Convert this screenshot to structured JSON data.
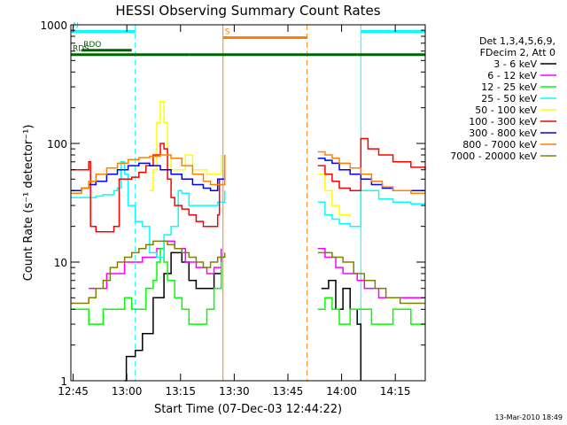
{
  "chart_data": {
    "type": "line",
    "title": "HESSI Observing Summary Count Rates",
    "xlabel": "Start Time (07-Dec-03 12:44:22)",
    "ylabel": "Count Rate (s⁻¹ detector⁻¹)",
    "ylog": true,
    "ylim": [
      1,
      1000
    ],
    "xlim_minutes_after_start": [
      0,
      99
    ],
    "x_ticks": [
      "12:45",
      "13:00",
      "13:15",
      "13:30",
      "13:45",
      "14:00",
      "14:15"
    ],
    "y_ticks": [
      "1",
      "10",
      "100",
      "1000"
    ],
    "footer_date": "13-Mar-2010 18:49",
    "legend_header": [
      "Det 1,3,4,5,6,9,",
      "FDecim 2, Att 0"
    ],
    "flags": [
      {
        "label": "N",
        "color": "#00ffff",
        "segments": [
          [
            0,
            18
          ],
          [
            81,
            99
          ]
        ],
        "level": 880
      },
      {
        "label": "S",
        "color": "#ff8000",
        "segments": [
          [
            42.5,
            66
          ]
        ],
        "level": 780
      },
      {
        "label": "RDO",
        "color": "#006400",
        "segments": [
          [
            3,
            17
          ]
        ],
        "level": 610
      },
      {
        "label": "RDS",
        "color": "#006400",
        "segments": [
          [
            0,
            33
          ],
          [
            33,
            66
          ],
          [
            66,
            80
          ],
          [
            80,
            99
          ]
        ],
        "level": 560
      }
    ],
    "vlines": [
      {
        "x": 18,
        "color": "#00ffff",
        "style": "dashed"
      },
      {
        "x": 42.5,
        "color": "#ff8000",
        "style": "solid"
      },
      {
        "x": 66,
        "color": "#ff8000",
        "style": "dashed"
      },
      {
        "x": 81,
        "color": "#00ffff",
        "style": "solid"
      },
      {
        "x": 99,
        "color": "#00ffff",
        "style": "dashed"
      }
    ],
    "series": [
      {
        "name": "3 - 6 keV",
        "color": "#000000",
        "points": [
          [
            15,
            1
          ],
          [
            15.5,
            1.6
          ],
          [
            18,
            1.8
          ],
          [
            20,
            2.5
          ],
          [
            23,
            5
          ],
          [
            26,
            8
          ],
          [
            28,
            12
          ],
          [
            31,
            10
          ],
          [
            33,
            7
          ],
          [
            35,
            6
          ],
          [
            38,
            6
          ],
          [
            40,
            8
          ],
          [
            42,
            12
          ],
          null,
          [
            70,
            6
          ],
          [
            72,
            7
          ],
          [
            74,
            4
          ],
          [
            76,
            6
          ],
          [
            78,
            4
          ],
          [
            80,
            3
          ],
          [
            81,
            1
          ]
        ]
      },
      {
        "name": "6 - 12 keV",
        "color": "#ff00ff",
        "points": [
          [
            5,
            6
          ],
          [
            10,
            8
          ],
          [
            15,
            10
          ],
          [
            20,
            11
          ],
          [
            24,
            13
          ],
          [
            26,
            15
          ],
          [
            29,
            13
          ],
          [
            32,
            10
          ],
          [
            35,
            9
          ],
          [
            38,
            8
          ],
          [
            40,
            9
          ],
          [
            42,
            13
          ],
          null,
          [
            69,
            13
          ],
          [
            71,
            11
          ],
          [
            74,
            9
          ],
          [
            76,
            8
          ],
          [
            78,
            8
          ],
          [
            80,
            7
          ],
          [
            82,
            6
          ],
          [
            84,
            6
          ],
          [
            86,
            5
          ],
          [
            90,
            5
          ],
          [
            95,
            5
          ],
          [
            99,
            5
          ]
        ]
      },
      {
        "name": "12 - 25 keV",
        "color": "#00ff00",
        "points": [
          [
            0,
            4
          ],
          [
            3,
            4
          ],
          [
            5,
            3
          ],
          [
            7,
            3
          ],
          [
            9,
            4
          ],
          [
            11,
            4
          ],
          [
            13,
            4
          ],
          [
            15,
            5
          ],
          [
            17,
            4
          ],
          [
            19,
            4
          ],
          [
            21,
            6
          ],
          [
            23,
            7
          ],
          [
            24,
            10
          ],
          [
            25,
            13
          ],
          [
            26,
            10
          ],
          [
            27,
            7
          ],
          [
            29,
            5
          ],
          [
            31,
            4
          ],
          [
            33,
            3
          ],
          [
            35,
            3
          ],
          [
            38,
            4
          ],
          [
            40,
            6
          ],
          [
            42,
            10
          ],
          null,
          [
            69,
            4
          ],
          [
            71,
            5
          ],
          [
            73,
            4
          ],
          [
            75,
            3
          ],
          [
            78,
            4
          ],
          [
            80,
            4
          ],
          [
            82,
            4
          ],
          [
            84,
            3
          ],
          [
            87,
            3
          ],
          [
            90,
            4
          ],
          [
            95,
            3
          ],
          [
            99,
            3
          ]
        ]
      },
      {
        "name": "25 - 50 keV",
        "color": "#00ffff",
        "points": [
          [
            0,
            35
          ],
          [
            3,
            35
          ],
          [
            5,
            35
          ],
          [
            7,
            36
          ],
          [
            9,
            37
          ],
          [
            12,
            40
          ],
          [
            13,
            42
          ],
          [
            14,
            70
          ],
          [
            15,
            55
          ],
          [
            16,
            30
          ],
          [
            18,
            22
          ],
          [
            20,
            20
          ],
          [
            22,
            12
          ],
          [
            24,
            11
          ],
          [
            26,
            17
          ],
          [
            28,
            20
          ],
          [
            30,
            40
          ],
          [
            31,
            38
          ],
          [
            33,
            30
          ],
          [
            36,
            30
          ],
          [
            39,
            30
          ],
          [
            41,
            32
          ],
          [
            43,
            40
          ],
          null,
          [
            69,
            32
          ],
          [
            71,
            25
          ],
          [
            73,
            23
          ],
          [
            75,
            21
          ],
          [
            78,
            20
          ],
          [
            80,
            20
          ],
          [
            81,
            40
          ],
          [
            83,
            40
          ],
          [
            86,
            34
          ],
          [
            90,
            32
          ],
          [
            95,
            31
          ],
          [
            99,
            31
          ]
        ]
      },
      {
        "name": "50 - 100 keV",
        "color": "#ffff00",
        "points": [
          [
            22,
            40
          ],
          [
            23,
            60
          ],
          [
            24,
            150
          ],
          [
            25,
            225
          ],
          [
            26,
            150
          ],
          [
            27,
            80
          ],
          [
            28,
            60
          ],
          [
            30,
            60
          ],
          [
            32,
            80
          ],
          [
            34,
            60
          ],
          [
            38,
            55
          ],
          [
            41,
            55
          ],
          [
            42,
            80
          ],
          null,
          [
            69,
            55
          ],
          [
            71,
            40
          ],
          [
            73,
            30
          ],
          [
            75,
            25
          ],
          [
            78,
            24
          ]
        ]
      },
      {
        "name": "100 - 300 keV",
        "color": "#ff0000",
        "points": [
          [
            0,
            60
          ],
          [
            3,
            60
          ],
          [
            5,
            70
          ],
          [
            5.5,
            20
          ],
          [
            7,
            18
          ],
          [
            10,
            18
          ],
          [
            12,
            20
          ],
          [
            13,
            20
          ],
          [
            13.5,
            50
          ],
          [
            15,
            50
          ],
          [
            17,
            52
          ],
          [
            19,
            57
          ],
          [
            21,
            65
          ],
          [
            23,
            80
          ],
          [
            25,
            100
          ],
          [
            26,
            90
          ],
          [
            27,
            50
          ],
          [
            28,
            35
          ],
          [
            29,
            30
          ],
          [
            31,
            28
          ],
          [
            33,
            25
          ],
          [
            35,
            22
          ],
          [
            37,
            20
          ],
          [
            39,
            20
          ],
          [
            41,
            25
          ],
          [
            41.5,
            50
          ],
          [
            43,
            60
          ],
          null,
          [
            69,
            65
          ],
          [
            71,
            55
          ],
          [
            73,
            48
          ],
          [
            75,
            42
          ],
          [
            78,
            40
          ],
          [
            80,
            40
          ],
          [
            81,
            110
          ],
          [
            83,
            90
          ],
          [
            86,
            80
          ],
          [
            90,
            70
          ],
          [
            95,
            63
          ],
          [
            99,
            60
          ]
        ]
      },
      {
        "name": "300 - 800 keV",
        "color": "#0000ff",
        "points": [
          [
            0,
            40
          ],
          [
            3,
            42
          ],
          [
            5,
            45
          ],
          [
            7,
            48
          ],
          [
            10,
            55
          ],
          [
            13,
            60
          ],
          [
            16,
            65
          ],
          [
            19,
            68
          ],
          [
            22,
            65
          ],
          [
            25,
            60
          ],
          [
            28,
            55
          ],
          [
            31,
            50
          ],
          [
            34,
            45
          ],
          [
            37,
            42
          ],
          [
            39,
            40
          ],
          [
            41,
            50
          ],
          [
            43,
            60
          ],
          null,
          [
            69,
            75
          ],
          [
            71,
            72
          ],
          [
            73,
            68
          ],
          [
            75,
            60
          ],
          [
            78,
            55
          ],
          [
            81,
            50
          ],
          [
            84,
            45
          ],
          [
            87,
            42
          ],
          [
            90,
            40
          ],
          [
            95,
            40
          ],
          [
            99,
            40
          ]
        ]
      },
      {
        "name": "800 - 7000 keV",
        "color": "#ff8000",
        "points": [
          [
            0,
            38
          ],
          [
            3,
            42
          ],
          [
            5,
            48
          ],
          [
            7,
            55
          ],
          [
            10,
            62
          ],
          [
            13,
            68
          ],
          [
            16,
            73
          ],
          [
            19,
            76
          ],
          [
            22,
            78
          ],
          [
            25,
            80
          ],
          [
            28,
            75
          ],
          [
            31,
            65
          ],
          [
            34,
            55
          ],
          [
            37,
            48
          ],
          [
            39,
            45
          ],
          [
            41,
            45
          ],
          [
            43,
            80
          ],
          null,
          [
            69,
            85
          ],
          [
            71,
            80
          ],
          [
            73,
            75
          ],
          [
            75,
            68
          ],
          [
            78,
            62
          ],
          [
            81,
            55
          ],
          [
            84,
            48
          ],
          [
            87,
            43
          ],
          [
            90,
            40
          ],
          [
            95,
            38
          ],
          [
            99,
            38
          ]
        ]
      },
      {
        "name": "7000 - 20000 keV",
        "color": "#808000",
        "points": [
          [
            0,
            4.5
          ],
          [
            3,
            4.5
          ],
          [
            5,
            5
          ],
          [
            7,
            6
          ],
          [
            9,
            7
          ],
          [
            11,
            9
          ],
          [
            13,
            10
          ],
          [
            15,
            11
          ],
          [
            17,
            12
          ],
          [
            19,
            13
          ],
          [
            21,
            14
          ],
          [
            23,
            15
          ],
          [
            25,
            15
          ],
          [
            27,
            14
          ],
          [
            29,
            13
          ],
          [
            31,
            12
          ],
          [
            33,
            11
          ],
          [
            35,
            10
          ],
          [
            37,
            9
          ],
          [
            39,
            10
          ],
          [
            41,
            11
          ],
          [
            43,
            12
          ],
          null,
          [
            69,
            12
          ],
          [
            71,
            12
          ],
          [
            73,
            11
          ],
          [
            76,
            10
          ],
          [
            79,
            8
          ],
          [
            82,
            7
          ],
          [
            85,
            6
          ],
          [
            88,
            5
          ],
          [
            92,
            4.5
          ],
          [
            96,
            4.5
          ],
          [
            99,
            4.5
          ]
        ]
      }
    ]
  }
}
